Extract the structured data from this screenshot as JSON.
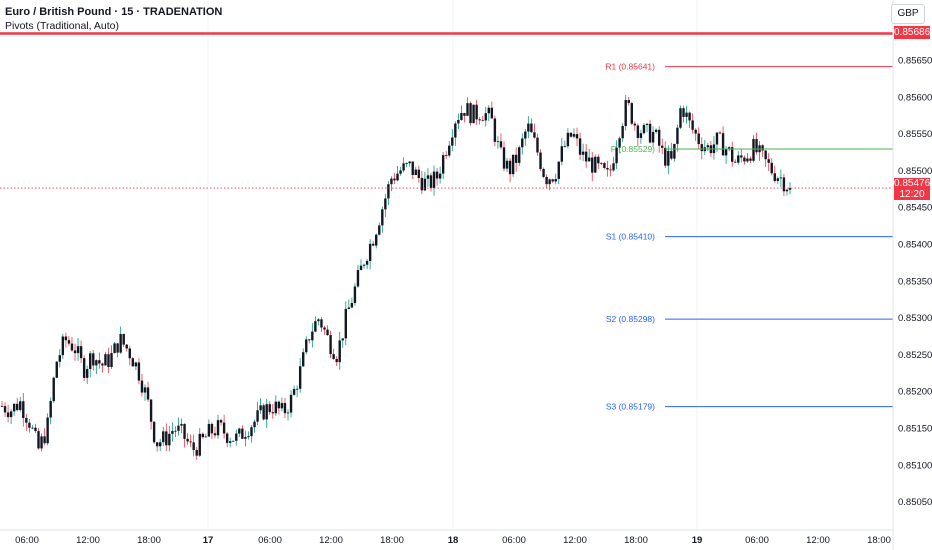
{
  "header": {
    "symbol_title": "Euro / British Pound · 15 · TRADENATION",
    "indicator_title": "Pivots (Traditional, Auto)",
    "currency_button": "GBP"
  },
  "price_tags": {
    "top_line": "0.85686",
    "current_price": "0.85476",
    "countdown": "12:20"
  },
  "colors": {
    "up": "#089981",
    "down": "#f23645",
    "red_line": "#f23645",
    "r1": "#f23645",
    "pp": "#4caf50",
    "support": "#2962ff",
    "axis_text": "#131722",
    "separator": "#e0e3eb"
  },
  "chart_data": {
    "type": "candlestick",
    "symbol": "Euro / British Pound",
    "interval": "15",
    "ylim": [
      0.85025,
      0.85712
    ],
    "y_ticks": [
      "0.85650",
      "0.85600",
      "0.85550",
      "0.85500",
      "0.85450",
      "0.85400",
      "0.85350",
      "0.85300",
      "0.85250",
      "0.85200",
      "0.85150",
      "0.85100",
      "0.85050"
    ],
    "x_ticks": [
      "06:00",
      "12:00",
      "18:00",
      "17",
      "06:00",
      "12:00",
      "18:00",
      "18",
      "06:00",
      "12:00",
      "18:00",
      "19",
      "06:00",
      "12:00",
      "18:00"
    ],
    "pivots": [
      {
        "label": "R1 (0.85641)",
        "value": 0.85641,
        "color": "#f23645"
      },
      {
        "label": "P (0.85529)",
        "value": 0.85529,
        "color": "#4caf50"
      },
      {
        "label": "S1 (0.85410)",
        "value": 0.8541,
        "color": "#2962ff"
      },
      {
        "label": "S2 (0.85298)",
        "value": 0.85298,
        "color": "#2962ff"
      },
      {
        "label": "S3 (0.85179)",
        "value": 0.85179,
        "color": "#2962ff"
      }
    ],
    "horizontal_line": 0.85686,
    "current_price": 0.85476,
    "close_path": [
      0.8518,
      0.85175,
      0.85185,
      0.8516,
      0.8512,
      0.8515,
      0.8524,
      0.8527,
      0.8526,
      0.8523,
      0.8525,
      0.85235,
      0.85245,
      0.8527,
      0.85255,
      0.8523,
      0.8519,
      0.8513,
      0.85135,
      0.8515,
      0.8514,
      0.8512,
      0.8513,
      0.85145,
      0.8515,
      0.8514,
      0.85135,
      0.8515,
      0.8516,
      0.85175,
      0.8518,
      0.8517,
      0.8519,
      0.8523,
      0.8528,
      0.853,
      0.8527,
      0.8525,
      0.853,
      0.8534,
      0.8538,
      0.8541,
      0.8545,
      0.8549,
      0.855,
      0.85505,
      0.8549,
      0.8548,
      0.8549,
      0.8553,
      0.8557,
      0.85585,
      0.85575,
      0.8558,
      0.8557,
      0.8552,
      0.855,
      0.8552,
      0.8556,
      0.8553,
      0.8549,
      0.85495,
      0.8553,
      0.8555,
      0.8552,
      0.8551,
      0.855,
      0.8549,
      0.8555,
      0.8559,
      0.8556,
      0.8555,
      0.8555,
      0.8552,
      0.8551,
      0.8559,
      0.8556,
      0.8554,
      0.8553,
      0.8554,
      0.8553,
      0.8551,
      0.8552,
      0.8553,
      0.85515,
      0.855,
      0.8549,
      0.85476
    ]
  }
}
